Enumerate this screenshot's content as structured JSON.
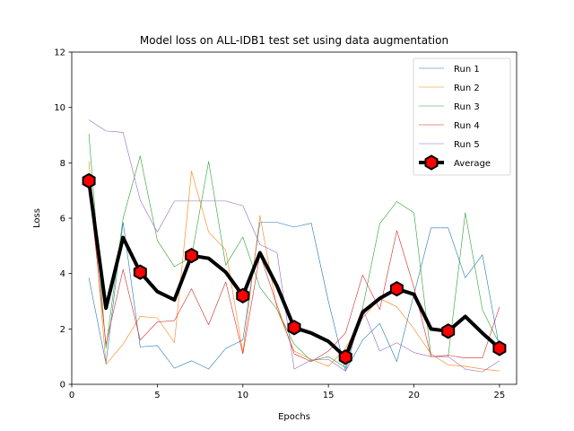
{
  "chart_data": {
    "type": "line",
    "title": "Model loss on ALL-IDB1 test set using data augmentation",
    "xlabel": "Epochs",
    "ylabel": "Loss",
    "xlim": [
      0,
      26
    ],
    "ylim": [
      0,
      12
    ],
    "xticks": [
      0,
      5,
      10,
      15,
      20,
      25
    ],
    "yticks": [
      0,
      2,
      4,
      6,
      8,
      10,
      12
    ],
    "legend_position": "top-right",
    "x": [
      1,
      2,
      3,
      4,
      5,
      6,
      7,
      8,
      9,
      10,
      11,
      12,
      13,
      14,
      15,
      16,
      17,
      18,
      19,
      20,
      21,
      22,
      23,
      24,
      25
    ],
    "series": [
      {
        "name": "Run 1",
        "color": "#1f77b4",
        "values": [
          3.85,
          0.75,
          5.85,
          1.35,
          1.4,
          0.58,
          0.85,
          0.55,
          1.3,
          1.6,
          5.85,
          5.85,
          5.68,
          5.82,
          3.0,
          0.48,
          1.6,
          2.2,
          0.82,
          3.25,
          5.65,
          5.65,
          3.85,
          4.68,
          1.3
        ]
      },
      {
        "name": "Run 2",
        "color": "#ff7f0e",
        "values": [
          8.05,
          0.72,
          1.45,
          2.45,
          2.4,
          1.5,
          7.7,
          5.5,
          4.85,
          1.15,
          6.1,
          2.7,
          1.2,
          0.9,
          0.65,
          1.3,
          2.4,
          3.1,
          2.8,
          2.0,
          1.1,
          0.7,
          0.65,
          0.55,
          0.48
        ]
      },
      {
        "name": "Run 3",
        "color": "#2ca02c",
        "values": [
          9.05,
          1.3,
          6.0,
          8.25,
          5.2,
          4.25,
          4.6,
          8.05,
          4.3,
          5.32,
          3.5,
          2.7,
          1.45,
          0.85,
          1.0,
          0.6,
          2.75,
          5.8,
          6.6,
          6.2,
          1.0,
          1.0,
          6.2,
          2.7,
          1.45
        ]
      },
      {
        "name": "Run 4",
        "color": "#d62728",
        "values": [
          7.25,
          1.45,
          4.15,
          1.6,
          2.25,
          2.3,
          3.45,
          2.15,
          3.7,
          1.1,
          4.7,
          2.85,
          1.1,
          0.82,
          1.2,
          1.85,
          3.95,
          2.7,
          5.55,
          3.5,
          1.0,
          1.05,
          0.95,
          0.95,
          2.8
        ]
      },
      {
        "name": "Run 5",
        "color": "#9467bd",
        "values": [
          9.55,
          9.15,
          9.1,
          6.65,
          5.5,
          6.62,
          6.62,
          6.62,
          6.62,
          6.45,
          5.05,
          4.75,
          0.55,
          0.88,
          0.9,
          0.48,
          2.75,
          1.2,
          1.5,
          1.15,
          1.0,
          1.0,
          0.55,
          0.45,
          0.85
        ]
      },
      {
        "name": "Average",
        "color": "#000000",
        "marker": "hexagon",
        "marker_color": "#ff0000",
        "values": [
          7.35,
          2.75,
          5.3,
          4.05,
          3.35,
          3.05,
          4.65,
          4.55,
          4.05,
          3.2,
          4.75,
          3.55,
          2.05,
          1.85,
          1.55,
          0.98,
          2.6,
          3.1,
          3.45,
          3.25,
          2.0,
          1.92,
          2.45,
          1.85,
          1.3
        ]
      }
    ]
  }
}
